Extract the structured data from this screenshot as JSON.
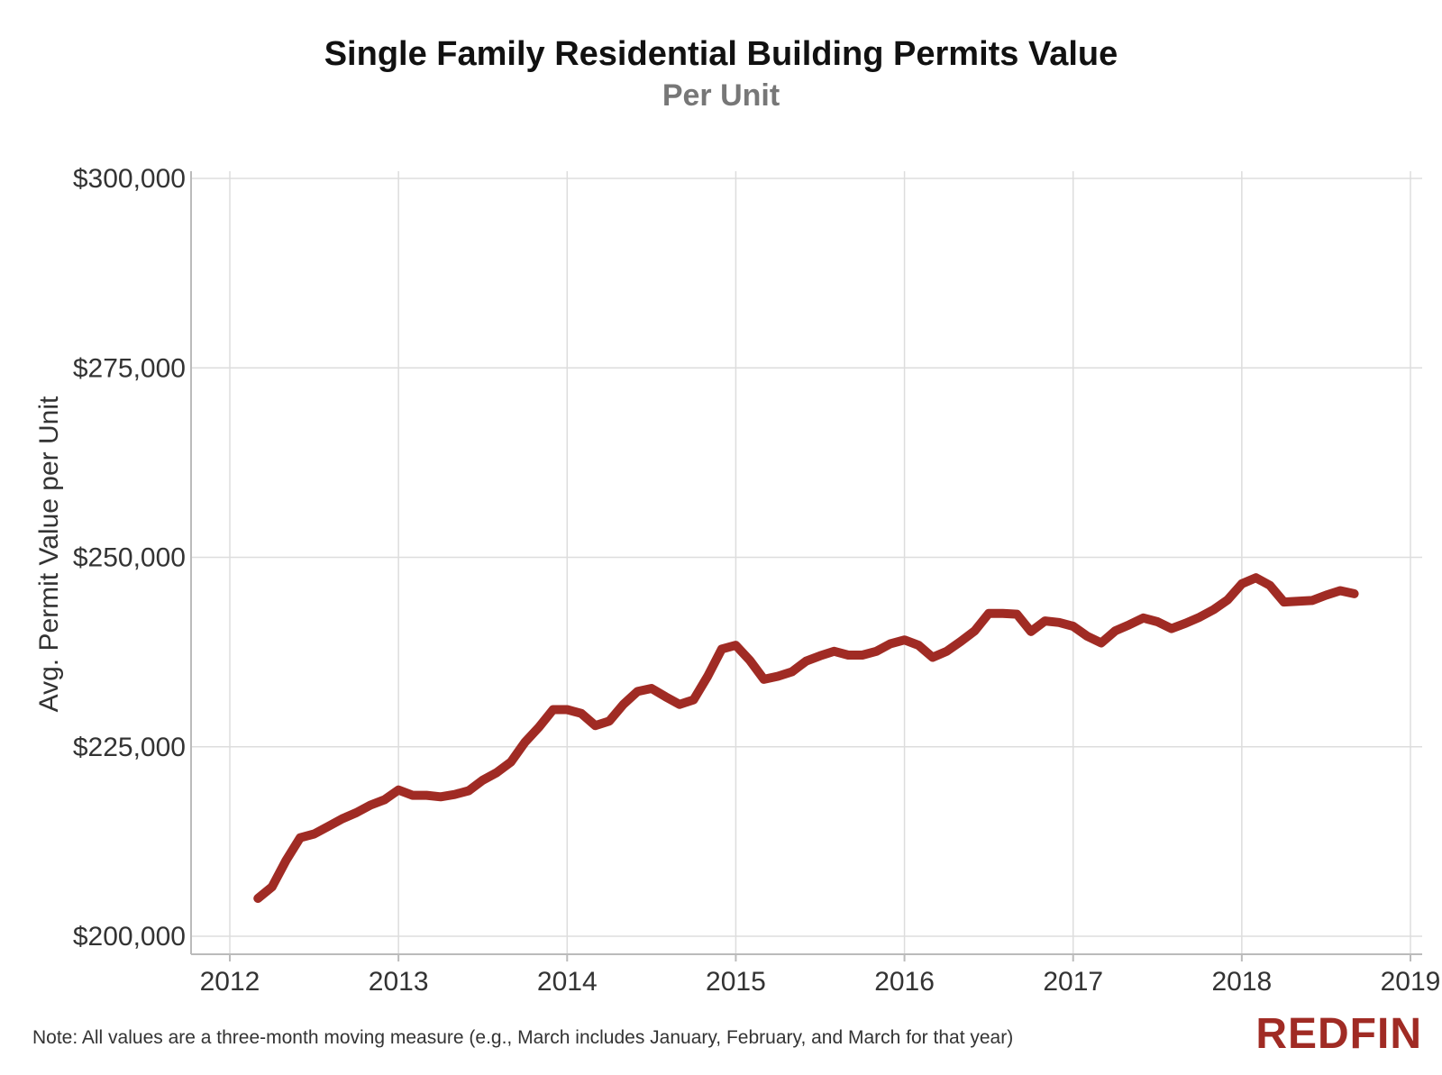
{
  "chart_data": {
    "type": "line",
    "title": "Single Family Residential Building Permits Value",
    "subtitle": "Per Unit",
    "xlabel": "",
    "ylabel": "Avg. Permit Value per Unit",
    "xlim": [
      2012,
      2019
    ],
    "ylim": [
      200000,
      300000
    ],
    "x_ticks": [
      "2012",
      "2013",
      "2014",
      "2015",
      "2016",
      "2017",
      "2018",
      "2019"
    ],
    "y_ticks": [
      "$200,000",
      "$225,000",
      "$250,000",
      "$275,000",
      "$300,000"
    ],
    "y_tick_values": [
      200000,
      225000,
      250000,
      275000,
      300000
    ],
    "grid": true,
    "series": [
      {
        "color": "#a02b24",
        "points": [
          [
            "2012-03",
            205000
          ],
          [
            "2012-04",
            206500
          ],
          [
            "2012-05",
            210000
          ],
          [
            "2012-06",
            213000
          ],
          [
            "2012-07",
            213500
          ],
          [
            "2012-08",
            214500
          ],
          [
            "2012-09",
            215500
          ],
          [
            "2012-10",
            216300
          ],
          [
            "2012-11",
            217300
          ],
          [
            "2012-12",
            218000
          ],
          [
            "2013-01",
            219300
          ],
          [
            "2013-02",
            218600
          ],
          [
            "2013-03",
            218600
          ],
          [
            "2013-04",
            218400
          ],
          [
            "2013-05",
            218700
          ],
          [
            "2013-06",
            219200
          ],
          [
            "2013-07",
            220600
          ],
          [
            "2013-08",
            221600
          ],
          [
            "2013-09",
            223000
          ],
          [
            "2013-10",
            225600
          ],
          [
            "2013-11",
            227600
          ],
          [
            "2013-12",
            229900
          ],
          [
            "2014-01",
            229900
          ],
          [
            "2014-02",
            229400
          ],
          [
            "2014-03",
            227800
          ],
          [
            "2014-04",
            228400
          ],
          [
            "2014-05",
            230600
          ],
          [
            "2014-06",
            232300
          ],
          [
            "2014-07",
            232700
          ],
          [
            "2014-08",
            231600
          ],
          [
            "2014-09",
            230600
          ],
          [
            "2014-10",
            231200
          ],
          [
            "2014-11",
            234300
          ],
          [
            "2014-12",
            237900
          ],
          [
            "2015-01",
            238400
          ],
          [
            "2015-02",
            236400
          ],
          [
            "2015-03",
            233900
          ],
          [
            "2015-04",
            234300
          ],
          [
            "2015-05",
            234900
          ],
          [
            "2015-06",
            236300
          ],
          [
            "2015-07",
            237000
          ],
          [
            "2015-08",
            237600
          ],
          [
            "2015-09",
            237100
          ],
          [
            "2015-10",
            237100
          ],
          [
            "2015-11",
            237600
          ],
          [
            "2015-12",
            238600
          ],
          [
            "2016-01",
            239100
          ],
          [
            "2016-02",
            238400
          ],
          [
            "2016-03",
            236800
          ],
          [
            "2016-04",
            237600
          ],
          [
            "2016-05",
            238900
          ],
          [
            "2016-06",
            240300
          ],
          [
            "2016-07",
            242600
          ],
          [
            "2016-08",
            242600
          ],
          [
            "2016-09",
            242500
          ],
          [
            "2016-10",
            240200
          ],
          [
            "2016-11",
            241600
          ],
          [
            "2016-12",
            241400
          ],
          [
            "2017-01",
            240900
          ],
          [
            "2017-02",
            239600
          ],
          [
            "2017-03",
            238700
          ],
          [
            "2017-04",
            240300
          ],
          [
            "2017-05",
            241100
          ],
          [
            "2017-06",
            242000
          ],
          [
            "2017-07",
            241500
          ],
          [
            "2017-08",
            240600
          ],
          [
            "2017-09",
            241300
          ],
          [
            "2017-10",
            242100
          ],
          [
            "2017-11",
            243100
          ],
          [
            "2017-12",
            244400
          ],
          [
            "2018-01",
            246500
          ],
          [
            "2018-02",
            247300
          ],
          [
            "2018-03",
            246300
          ],
          [
            "2018-04",
            244100
          ],
          [
            "2018-05",
            244200
          ],
          [
            "2018-06",
            244300
          ],
          [
            "2018-07",
            245000
          ],
          [
            "2018-08",
            245600
          ],
          [
            "2018-09",
            245200
          ]
        ]
      }
    ]
  },
  "footer": {
    "note": "Note: All values are a three-month moving measure (e.g., March includes January, February, and March for that year)",
    "brand": "REDFIN"
  }
}
